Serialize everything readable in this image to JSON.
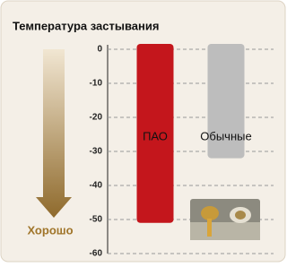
{
  "chart_data": {
    "type": "bar",
    "title": "Температура застывания",
    "categories": [
      "ПАО",
      "Обычные"
    ],
    "values": [
      -51,
      -32
    ],
    "colors": [
      "#c4161c",
      "#bdbdbd"
    ],
    "ylim": [
      -60,
      0
    ],
    "yticks": [
      0,
      -10,
      -20,
      -30,
      -40,
      -50,
      -60
    ],
    "grid": true,
    "annotation": "Хорошо"
  }
}
